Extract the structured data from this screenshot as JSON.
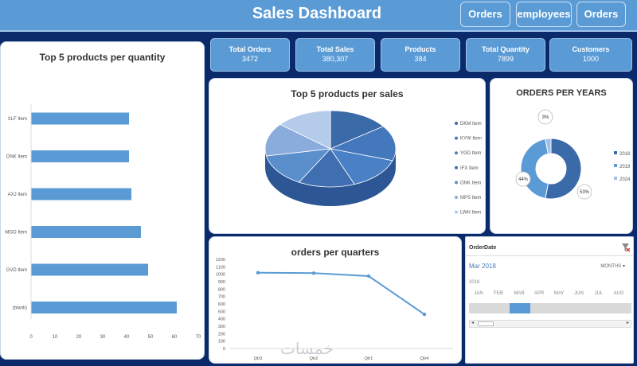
{
  "header": {
    "title": "Sales Dashboard",
    "nav": [
      "Orders",
      "employees",
      "Orders"
    ]
  },
  "kpis": [
    {
      "label": "Total Orders",
      "value": "3472"
    },
    {
      "label": "Total Sales",
      "value": "380,307"
    },
    {
      "label": "Products",
      "value": "384"
    },
    {
      "label": "Total Quantity",
      "value": "7899"
    },
    {
      "label": "Customers",
      "value": "1000"
    }
  ],
  "colors": {
    "accent": "#5b9bd5",
    "background": "#0b2a6b",
    "dark_blue": "#3b6aa8"
  },
  "watermark": "خمسات",
  "chart_data": [
    {
      "type": "bar",
      "orientation": "horizontal",
      "title": "Top 5 products per quantity",
      "categories": [
        "XLF Item",
        "ONK Item",
        "AXJ Item",
        "MGO Item",
        "GVD Item",
        "(blank)"
      ],
      "values": [
        41,
        41,
        42,
        46,
        49,
        61
      ],
      "xlim": [
        0,
        70
      ],
      "xticks": [
        "0",
        "10",
        "20",
        "30",
        "40",
        "50",
        "60",
        "70"
      ]
    },
    {
      "type": "pie",
      "title": "Top 5 products per sales",
      "labels": [
        "DKM Item",
        "KYW Item",
        "YGD Item",
        "IFX Item",
        "ONK Item",
        "MPS Item",
        "LWH Item"
      ],
      "values": [
        15,
        15,
        14,
        14,
        14,
        14,
        14
      ]
    },
    {
      "type": "pie",
      "subtype": "doughnut",
      "title": "ORDERS PER YEARS",
      "labels": [
        "2018",
        "2019",
        "2024"
      ],
      "values": [
        53,
        44,
        3
      ],
      "data_labels": [
        "53%",
        "44%",
        "3%"
      ]
    },
    {
      "type": "line",
      "title": "orders per quarters",
      "categories": [
        "Qtr3",
        "Qtr2",
        "Qtr1",
        "Qtr4"
      ],
      "values": [
        1020,
        1015,
        975,
        460
      ],
      "ylim": [
        0,
        1200
      ],
      "yticks": [
        "0",
        "100",
        "200",
        "300",
        "400",
        "500",
        "600",
        "700",
        "800",
        "900",
        "1000",
        "1100",
        "1200"
      ]
    }
  ],
  "timeline": {
    "header": "OrderDate",
    "selected": "Mar 2018",
    "level": "MONTHS",
    "year": "2018",
    "months": [
      "JAN",
      "FEB",
      "MAR",
      "APR",
      "MAY",
      "JUN",
      "JUL",
      "AUG"
    ]
  }
}
